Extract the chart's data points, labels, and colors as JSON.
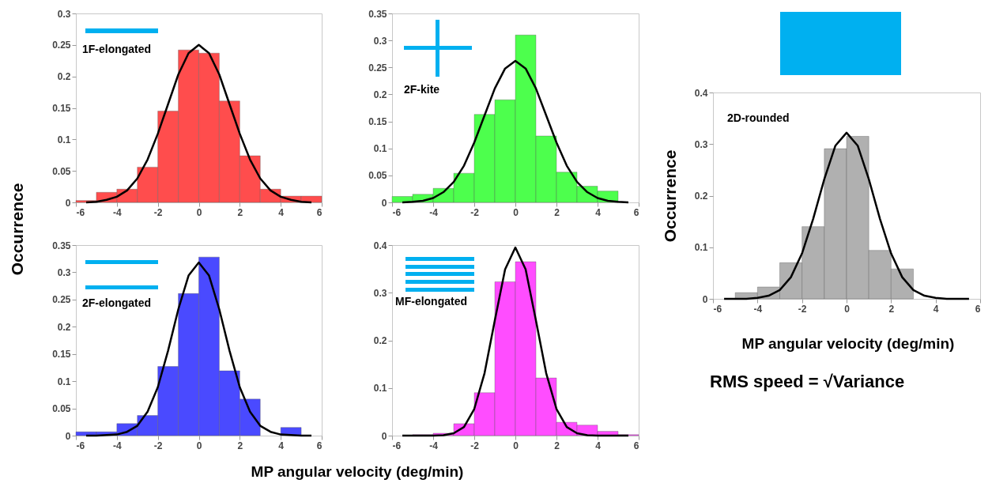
{
  "chart_data": [
    {
      "type": "histogram",
      "bins": [
        -6,
        -5,
        -4,
        -3,
        -2,
        -1,
        0,
        1,
        2,
        3,
        4,
        5,
        6
      ],
      "values": [
        0.003,
        0.016,
        0.021,
        0.056,
        0.145,
        0.242,
        0.237,
        0.161,
        0.074,
        0.021,
        0.01,
        0.01
      ],
      "color": "#ff4d4d",
      "ylabel": "Occurrence",
      "xlim": [
        -6,
        6
      ],
      "xticks": [
        -6,
        -4,
        -2,
        0,
        2,
        4,
        6
      ],
      "ylim": [
        0,
        0.3
      ],
      "yticks": [
        0,
        0.05,
        0.1,
        0.15,
        0.2,
        0.25,
        0.3
      ],
      "annotations": [
        "1F-elongated"
      ],
      "series": [
        {
          "type": "line",
          "color": "#000000",
          "x": [
            -5.5,
            -5,
            -4.5,
            -4,
            -3.5,
            -3,
            -2.5,
            -2,
            -1.5,
            -1,
            -0.5,
            0,
            0.5,
            1,
            1.5,
            2,
            2.5,
            3,
            3.5,
            4,
            4.5,
            5,
            5.5
          ],
          "values": [
            0,
            0.001,
            0.004,
            0.009,
            0.019,
            0.038,
            0.068,
            0.109,
            0.156,
            0.203,
            0.237,
            0.25,
            0.237,
            0.203,
            0.156,
            0.109,
            0.068,
            0.038,
            0.019,
            0.009,
            0.004,
            0.001,
            0
          ]
        }
      ]
    },
    {
      "type": "histogram",
      "bins": [
        -6,
        -5,
        -4,
        -3,
        -2,
        -1,
        0,
        1,
        2,
        3,
        4,
        5
      ],
      "values": [
        0.011,
        0.015,
        0.026,
        0.054,
        0.163,
        0.19,
        0.31,
        0.123,
        0.056,
        0.03,
        0.021
      ],
      "color": "#4dff4d",
      "xlim": [
        -6,
        6
      ],
      "xticks": [
        -6,
        -4,
        -2,
        0,
        2,
        4,
        6
      ],
      "ylim": [
        0,
        0.35
      ],
      "yticks": [
        0,
        0.05,
        0.1,
        0.15,
        0.2,
        0.25,
        0.3,
        0.35
      ],
      "annotations": [
        "2F-kite"
      ],
      "series": [
        {
          "type": "line",
          "color": "#000000",
          "x": [
            -5.5,
            -5,
            -4.5,
            -4,
            -3.5,
            -3,
            -2.5,
            -2,
            -1.5,
            -1,
            -0.5,
            0,
            0.5,
            1,
            1.5,
            2,
            2.5,
            3,
            3.5,
            4,
            4.5,
            5,
            5.5
          ],
          "values": [
            0,
            0.001,
            0.003,
            0.008,
            0.019,
            0.038,
            0.068,
            0.111,
            0.161,
            0.211,
            0.248,
            0.262,
            0.248,
            0.211,
            0.161,
            0.111,
            0.068,
            0.038,
            0.019,
            0.008,
            0.003,
            0.001,
            0
          ]
        }
      ]
    },
    {
      "type": "histogram",
      "bins": [
        -6,
        -5,
        -4,
        -3,
        -2,
        -1,
        0,
        1,
        2,
        3,
        4,
        5
      ],
      "values": [
        0.007,
        0.007,
        0.022,
        0.037,
        0.127,
        0.261,
        0.328,
        0.119,
        0.067,
        0,
        0.015
      ],
      "color": "#4a4aff",
      "xlabel": "MP angular velocity (deg/min)",
      "xlim": [
        -6,
        6
      ],
      "xticks": [
        -6,
        -4,
        -2,
        0,
        2,
        4,
        6
      ],
      "ylim": [
        0,
        0.35
      ],
      "yticks": [
        0,
        0.05,
        0.1,
        0.15,
        0.2,
        0.25,
        0.3,
        0.35
      ],
      "annotations": [
        "2F-elongated"
      ],
      "series": [
        {
          "type": "line",
          "color": "#000000",
          "x": [
            -5.5,
            -5,
            -4.5,
            -4,
            -3.5,
            -3,
            -2.5,
            -2,
            -1.5,
            -1,
            -0.5,
            0,
            0.5,
            1,
            1.5,
            2,
            2.5,
            3,
            3.5,
            4,
            4.5,
            5,
            5.5
          ],
          "values": [
            0,
            0,
            0.001,
            0.002,
            0.007,
            0.018,
            0.044,
            0.089,
            0.156,
            0.232,
            0.294,
            0.318,
            0.294,
            0.232,
            0.156,
            0.089,
            0.044,
            0.018,
            0.007,
            0.002,
            0.001,
            0,
            0
          ]
        }
      ]
    },
    {
      "type": "histogram",
      "bins": [
        -6,
        -5,
        -4,
        -3,
        -2,
        -1,
        0,
        1,
        2,
        3,
        4,
        5,
        6
      ],
      "values": [
        0,
        0.002,
        0.005,
        0.025,
        0.09,
        0.323,
        0.365,
        0.121,
        0.028,
        0.022,
        0.009,
        0.002
      ],
      "color": "#ff4dff",
      "xlim": [
        -6,
        6
      ],
      "xticks": [
        -6,
        -4,
        -2,
        0,
        2,
        4,
        6
      ],
      "ylim": [
        0,
        0.4
      ],
      "yticks": [
        0,
        0.1,
        0.2,
        0.3,
        0.4
      ],
      "annotations": [
        "MF-elongated"
      ],
      "series": [
        {
          "type": "line",
          "color": "#000000",
          "x": [
            -5.5,
            -5,
            -4.5,
            -4,
            -3.5,
            -3,
            -2.5,
            -2,
            -1.5,
            -1,
            -0.5,
            0,
            0.5,
            1,
            1.5,
            2,
            2.5,
            3,
            3.5,
            4,
            4.5,
            5,
            5.5
          ],
          "values": [
            0,
            0,
            0,
            0,
            0.001,
            0.005,
            0.018,
            0.056,
            0.131,
            0.242,
            0.349,
            0.395,
            0.349,
            0.242,
            0.131,
            0.056,
            0.018,
            0.005,
            0.001,
            0,
            0,
            0,
            0
          ]
        }
      ]
    },
    {
      "type": "histogram",
      "bins": [
        -5,
        -4,
        -3,
        -2,
        -1,
        0,
        1,
        2,
        3
      ],
      "values": [
        0.012,
        0.023,
        0.07,
        0.14,
        0.291,
        0.315,
        0.094,
        0.058
      ],
      "color": "#b0b0b0",
      "ylabel": "Occurrence",
      "xlabel": "MP angular velocity (deg/min)",
      "xlim": [
        -6,
        6
      ],
      "xticks": [
        -6,
        -4,
        -2,
        0,
        2,
        4,
        6
      ],
      "ylim": [
        0,
        0.4
      ],
      "yticks": [
        0,
        0.1,
        0.2,
        0.3,
        0.4
      ],
      "annotations": [
        "2D-rounded",
        "RMS speed = √Variance"
      ],
      "series": [
        {
          "type": "line",
          "color": "#000000",
          "x": [
            -5.5,
            -5,
            -4.5,
            -4,
            -3.5,
            -3,
            -2.5,
            -2,
            -1.5,
            -1,
            -0.5,
            0,
            0.5,
            1,
            1.5,
            2,
            2.5,
            3,
            3.5,
            4,
            4.5,
            5,
            5.5
          ],
          "values": [
            0,
            0,
            0,
            0.002,
            0.006,
            0.017,
            0.042,
            0.088,
            0.155,
            0.232,
            0.297,
            0.322,
            0.297,
            0.232,
            0.155,
            0.088,
            0.042,
            0.017,
            0.006,
            0.002,
            0,
            0,
            0
          ]
        }
      ]
    }
  ]
}
